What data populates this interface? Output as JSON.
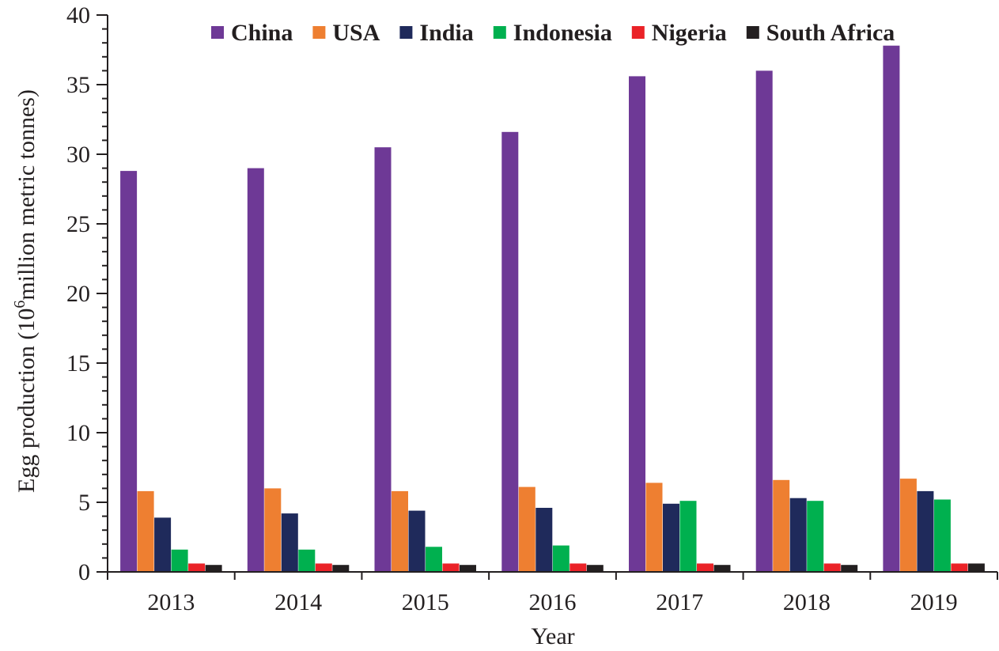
{
  "chart_data": {
    "type": "bar",
    "title": "",
    "xlabel": "Year",
    "ylabel": "Egg production (10",
    "ylabel_sup": "6",
    "ylabel_rest": "million metric tonnes)",
    "ylim": [
      0,
      40
    ],
    "yticks": [
      0,
      5,
      10,
      15,
      20,
      25,
      30,
      35,
      40
    ],
    "categories": [
      "2013",
      "2014",
      "2015",
      "2016",
      "2017",
      "2018",
      "2019"
    ],
    "legend_position": "top",
    "series": [
      {
        "name": "China",
        "color": "#6e3996",
        "values": [
          28.8,
          29.0,
          30.5,
          31.6,
          35.6,
          36.0,
          37.8
        ]
      },
      {
        "name": "USA",
        "color": "#ee7f31",
        "values": [
          5.8,
          6.0,
          5.8,
          6.1,
          6.4,
          6.6,
          6.7
        ]
      },
      {
        "name": "India",
        "color": "#1f2a5b",
        "values": [
          3.9,
          4.2,
          4.4,
          4.6,
          4.9,
          5.3,
          5.8
        ]
      },
      {
        "name": "Indonesia",
        "color": "#00b04f",
        "values": [
          1.6,
          1.6,
          1.8,
          1.9,
          5.1,
          5.1,
          5.2
        ]
      },
      {
        "name": "Nigeria",
        "color": "#ea2227",
        "values": [
          0.6,
          0.6,
          0.6,
          0.6,
          0.6,
          0.6,
          0.6
        ]
      },
      {
        "name": "South Africa",
        "color": "#231f20",
        "values": [
          0.5,
          0.5,
          0.5,
          0.5,
          0.5,
          0.5,
          0.6
        ]
      }
    ]
  }
}
